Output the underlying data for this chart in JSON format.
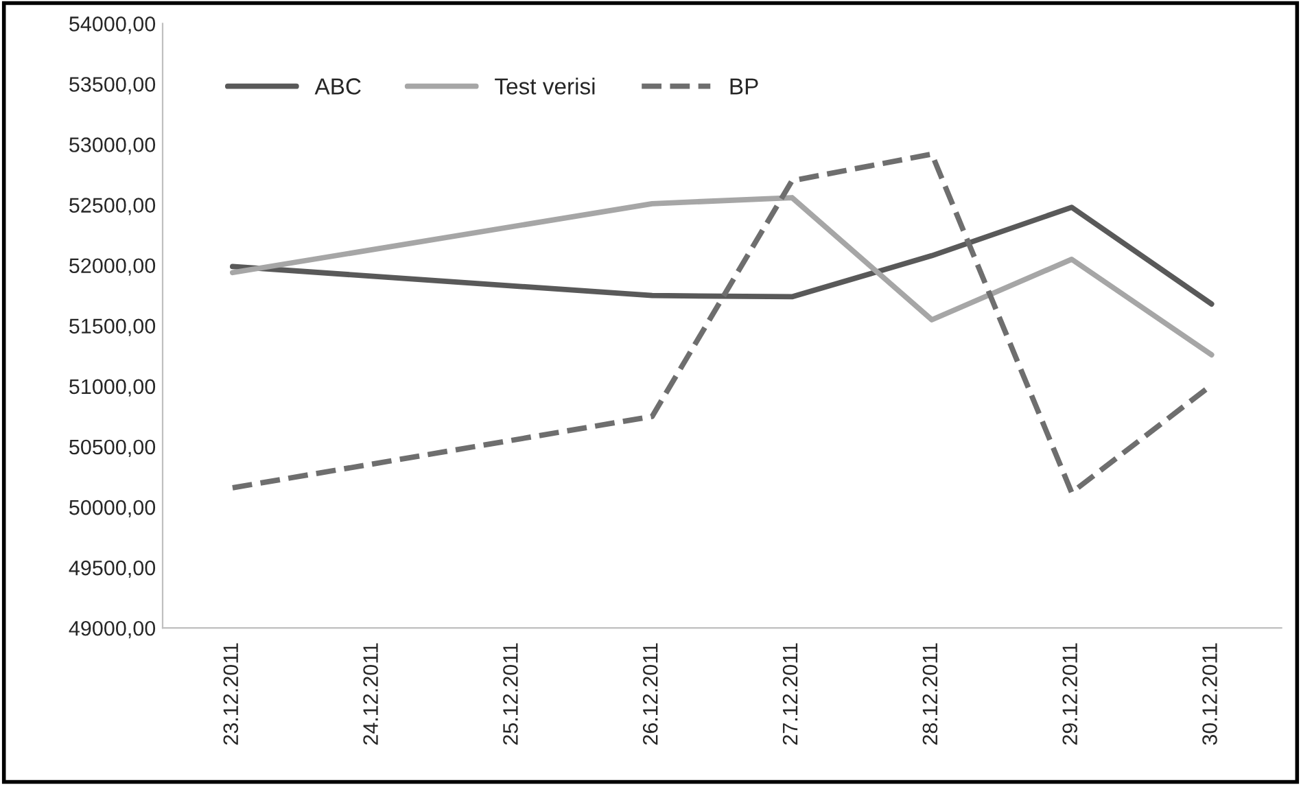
{
  "chart_data": {
    "type": "line",
    "x": [
      "2011-12-23",
      "2011-12-26",
      "2011-12-27",
      "2011-12-28",
      "2011-12-29",
      "2011-12-30"
    ],
    "series": [
      {
        "name": "ABC",
        "color": "#595959",
        "line_style": "solid",
        "values": [
          51990,
          51750,
          51740,
          52080,
          52480,
          51680
        ]
      },
      {
        "name": "Test verisi",
        "color": "#a6a6a6",
        "line_style": "solid",
        "values": [
          51940,
          52510,
          52560,
          51550,
          52050,
          51260
        ]
      },
      {
        "name": "BP",
        "color": "#6e6e6e",
        "line_style": "dashed",
        "values": [
          50160,
          50750,
          52700,
          52920,
          50120,
          51010
        ]
      }
    ],
    "xlim": [
      "2011-12-22T12:00",
      "2011-12-30T12:00"
    ],
    "xticks": [
      {
        "value": "2011-12-23",
        "label": "23.12.2011"
      },
      {
        "value": "2011-12-24",
        "label": "24.12.2011"
      },
      {
        "value": "2011-12-25",
        "label": "25.12.2011"
      },
      {
        "value": "2011-12-26",
        "label": "26.12.2011"
      },
      {
        "value": "2011-12-27",
        "label": "27.12.2011"
      },
      {
        "value": "2011-12-28",
        "label": "28.12.2011"
      },
      {
        "value": "2011-12-29",
        "label": "29.12.2011"
      },
      {
        "value": "2011-12-30",
        "label": "30.12.2011"
      }
    ],
    "ylim": [
      49000,
      54000
    ],
    "yticks": [
      {
        "value": 49000,
        "label": "49000,00"
      },
      {
        "value": 49500,
        "label": "49500,00"
      },
      {
        "value": 50000,
        "label": "50000,00"
      },
      {
        "value": 50500,
        "label": "50500,00"
      },
      {
        "value": 51000,
        "label": "51000,00"
      },
      {
        "value": 51500,
        "label": "51500,00"
      },
      {
        "value": 52000,
        "label": "52000,00"
      },
      {
        "value": 52500,
        "label": "52500,00"
      },
      {
        "value": 53000,
        "label": "53000,00"
      },
      {
        "value": 53500,
        "label": "53500,00"
      },
      {
        "value": 54000,
        "label": "54000,00"
      }
    ],
    "grid": false,
    "legend": "top left"
  }
}
